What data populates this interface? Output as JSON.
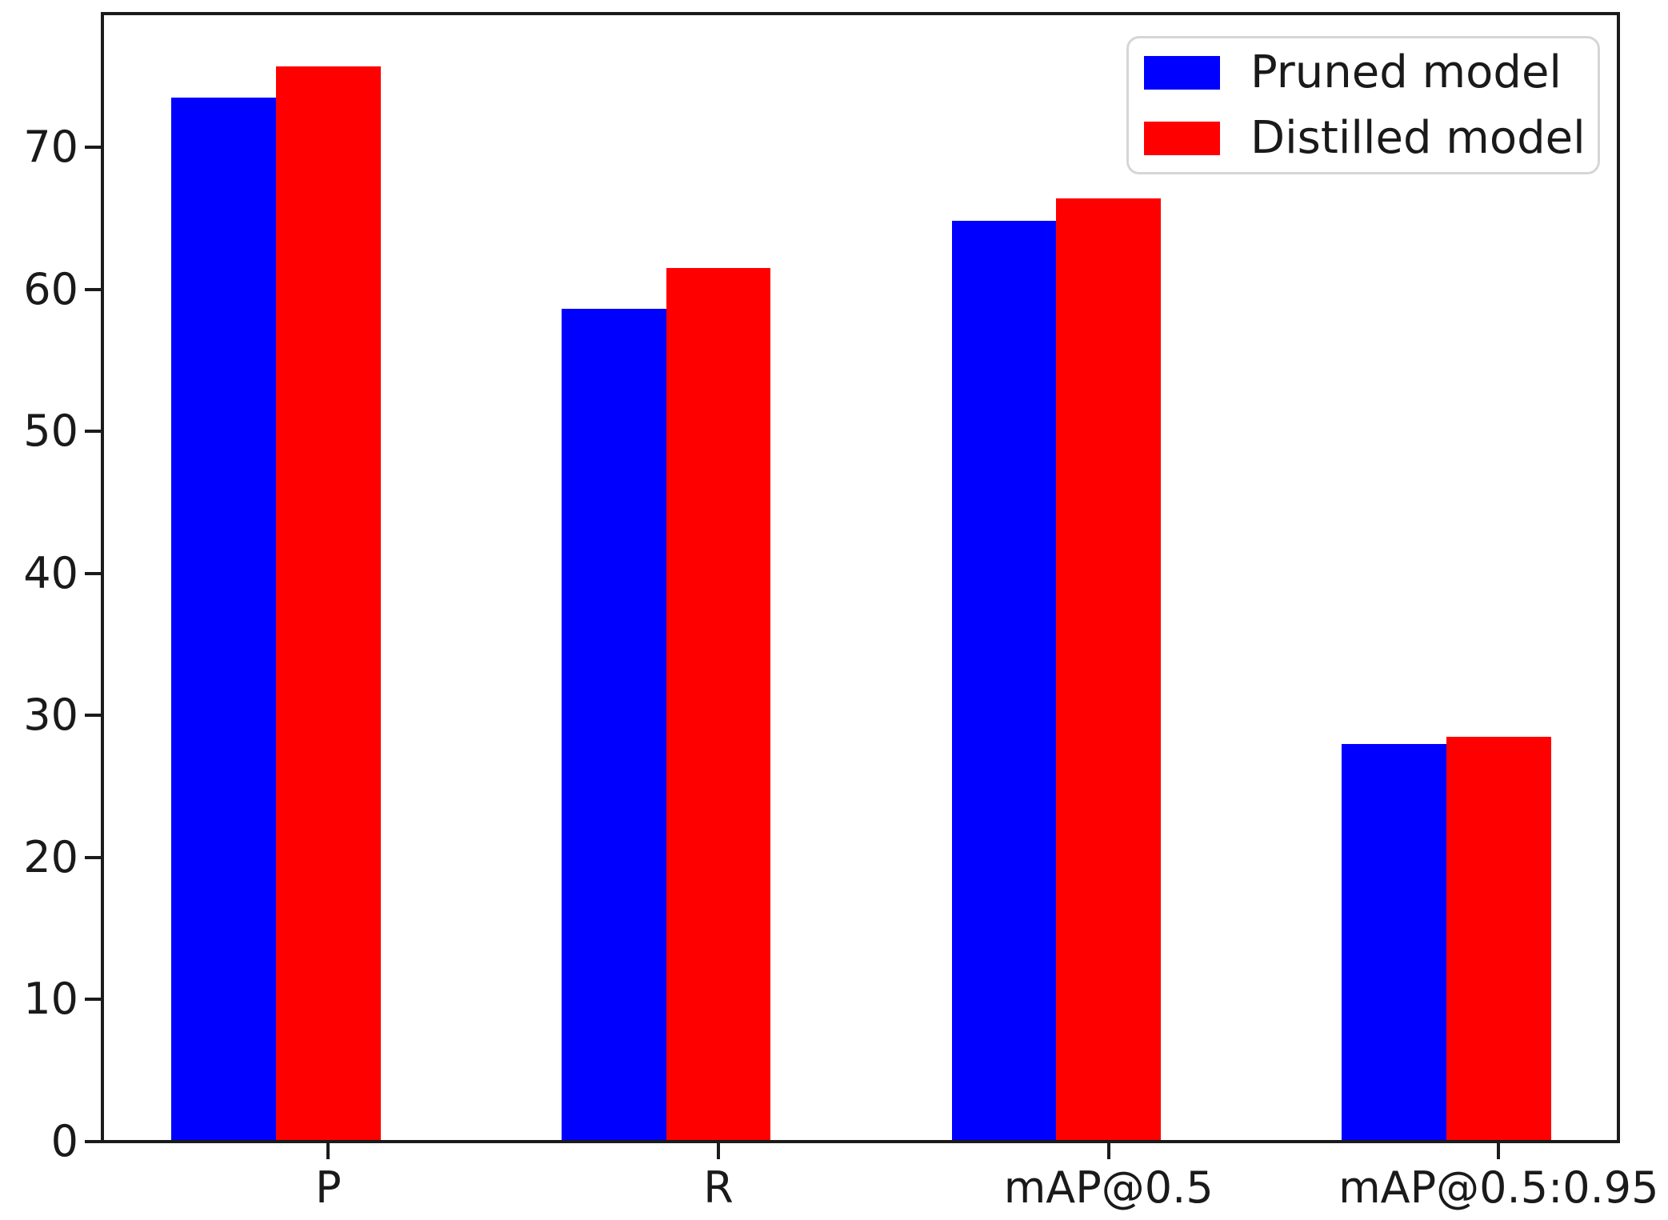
{
  "chart_data": {
    "type": "bar",
    "title": "",
    "xlabel": "",
    "ylabel": "",
    "categories": [
      "P",
      "R",
      "mAP@0.5",
      "mAP@0.5:0.95"
    ],
    "series": [
      {
        "name": "Pruned model",
        "color": "#0000ff",
        "values": [
          73.5,
          58.6,
          64.8,
          28.0
        ]
      },
      {
        "name": "Distilled model",
        "color": "#ff0000",
        "values": [
          75.7,
          61.5,
          66.4,
          28.5
        ]
      }
    ],
    "ylim": [
      0,
      79.4
    ],
    "yticks": [
      0,
      10,
      20,
      30,
      40,
      50,
      60,
      70
    ],
    "xlim_units": [
      -0.579,
      3.311
    ],
    "bar_width_units": 0.268,
    "series_offsets_units": [
      -0.268,
      0
    ],
    "grid": false,
    "legend_position": "upper right"
  },
  "colors": {
    "axis": "#1b1b1b",
    "text": "#1a1a1a",
    "legend_border": "#d6d6d6",
    "background": "#ffffff"
  }
}
